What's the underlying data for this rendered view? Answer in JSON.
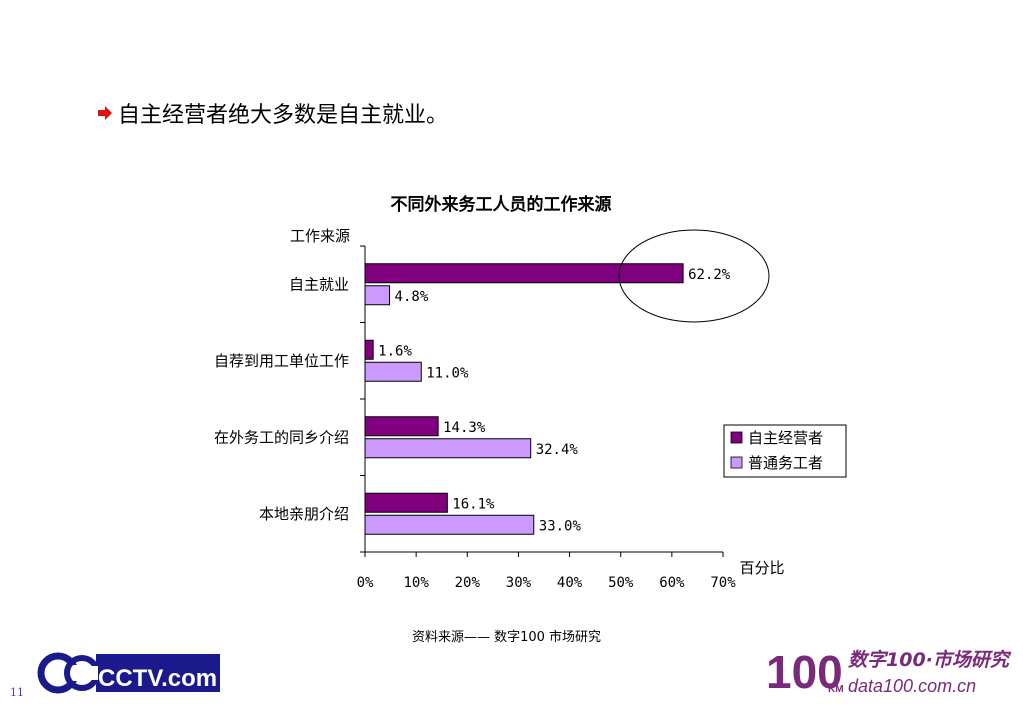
{
  "headline": {
    "text": "自主经营者绝大多数是自主就业。",
    "bullet_icon": "red-arrow-icon",
    "bullet_color": "#e01010"
  },
  "chart_data": {
    "type": "bar",
    "orientation": "horizontal",
    "title": "不同外来务工人员的工作来源",
    "ylabel": "工作来源",
    "xlabel": "百分比",
    "categories": [
      "自主就业",
      "自荐到用工单位工作",
      "在外务工的同乡介绍",
      "本地亲朋介绍"
    ],
    "series": [
      {
        "name": "自主经营者",
        "values": [
          62.2,
          1.6,
          14.3,
          16.1
        ],
        "labels": [
          "62.2%",
          "1.6%",
          "14.3%",
          "16.1%"
        ],
        "color": "#800080"
      },
      {
        "name": "普通务工者",
        "values": [
          4.8,
          11.0,
          32.4,
          33.0
        ],
        "labels": [
          "4.8%",
          "11.0%",
          "32.4%",
          "33.0%"
        ],
        "color": "#cc99ff"
      }
    ],
    "xlim": [
      0,
      70
    ],
    "xticks": [
      "0%",
      "10%",
      "20%",
      "30%",
      "40%",
      "50%",
      "60%",
      "70%"
    ],
    "legend_position": "right",
    "grid": false,
    "annotation": "ellipse around 62.2% bar end"
  },
  "footer": {
    "source": "资料来源——  数字100  市场研究",
    "page_number": "11",
    "logo_left": "CCTV.com",
    "logo_right_main": "数字100·市场研究",
    "logo_right_sub": "data100.com.cn",
    "logo_right_num": "100",
    "logo_right_km": "KM"
  }
}
